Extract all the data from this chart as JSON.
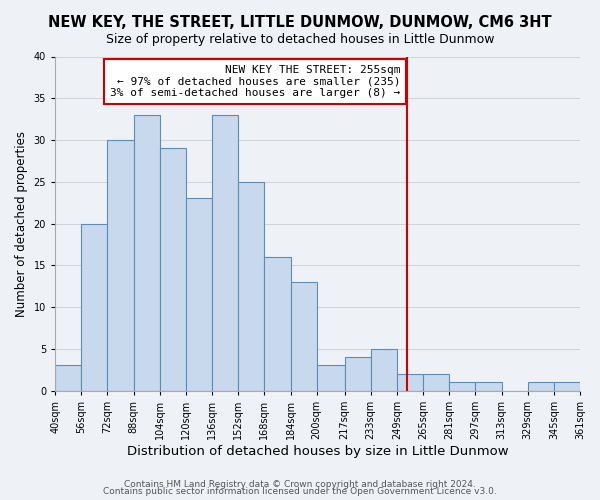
{
  "title": "NEW KEY, THE STREET, LITTLE DUNMOW, DUNMOW, CM6 3HT",
  "subtitle": "Size of property relative to detached houses in Little Dunmow",
  "xlabel": "Distribution of detached houses by size in Little Dunmow",
  "ylabel": "Number of detached properties",
  "bin_labels": [
    "40sqm",
    "56sqm",
    "72sqm",
    "88sqm",
    "104sqm",
    "120sqm",
    "136sqm",
    "152sqm",
    "168sqm",
    "184sqm",
    "200sqm",
    "217sqm",
    "233sqm",
    "249sqm",
    "265sqm",
    "281sqm",
    "297sqm",
    "313sqm",
    "329sqm",
    "345sqm",
    "361sqm"
  ],
  "bin_edges": [
    40,
    56,
    72,
    88,
    104,
    120,
    136,
    152,
    168,
    184,
    200,
    217,
    233,
    249,
    265,
    281,
    297,
    313,
    329,
    345,
    361
  ],
  "bar_heights": [
    3,
    20,
    30,
    33,
    29,
    23,
    33,
    25,
    16,
    13,
    3,
    4,
    5,
    2,
    2,
    1,
    1,
    0,
    1,
    1
  ],
  "bar_color": "#c8d9ed",
  "bar_edgecolor": "#5b8db8",
  "vline_x": 255,
  "vline_color": "#cc0000",
  "annotation_line1": "NEW KEY THE STREET: 255sqm",
  "annotation_line2": "← 97% of detached houses are smaller (235)",
  "annotation_line3": "3% of semi-detached houses are larger (8) →",
  "annotation_box_edgecolor": "#cc0000",
  "ylim": [
    0,
    40
  ],
  "yticks": [
    0,
    5,
    10,
    15,
    20,
    25,
    30,
    35,
    40
  ],
  "footnote1": "Contains HM Land Registry data © Crown copyright and database right 2024.",
  "footnote2": "Contains public sector information licensed under the Open Government Licence v3.0.",
  "background_color": "#eef2f7",
  "title_fontsize": 10.5,
  "subtitle_fontsize": 9,
  "xlabel_fontsize": 9.5,
  "ylabel_fontsize": 8.5,
  "tick_fontsize": 7,
  "footnote_fontsize": 6.5,
  "annotation_fontsize": 8
}
